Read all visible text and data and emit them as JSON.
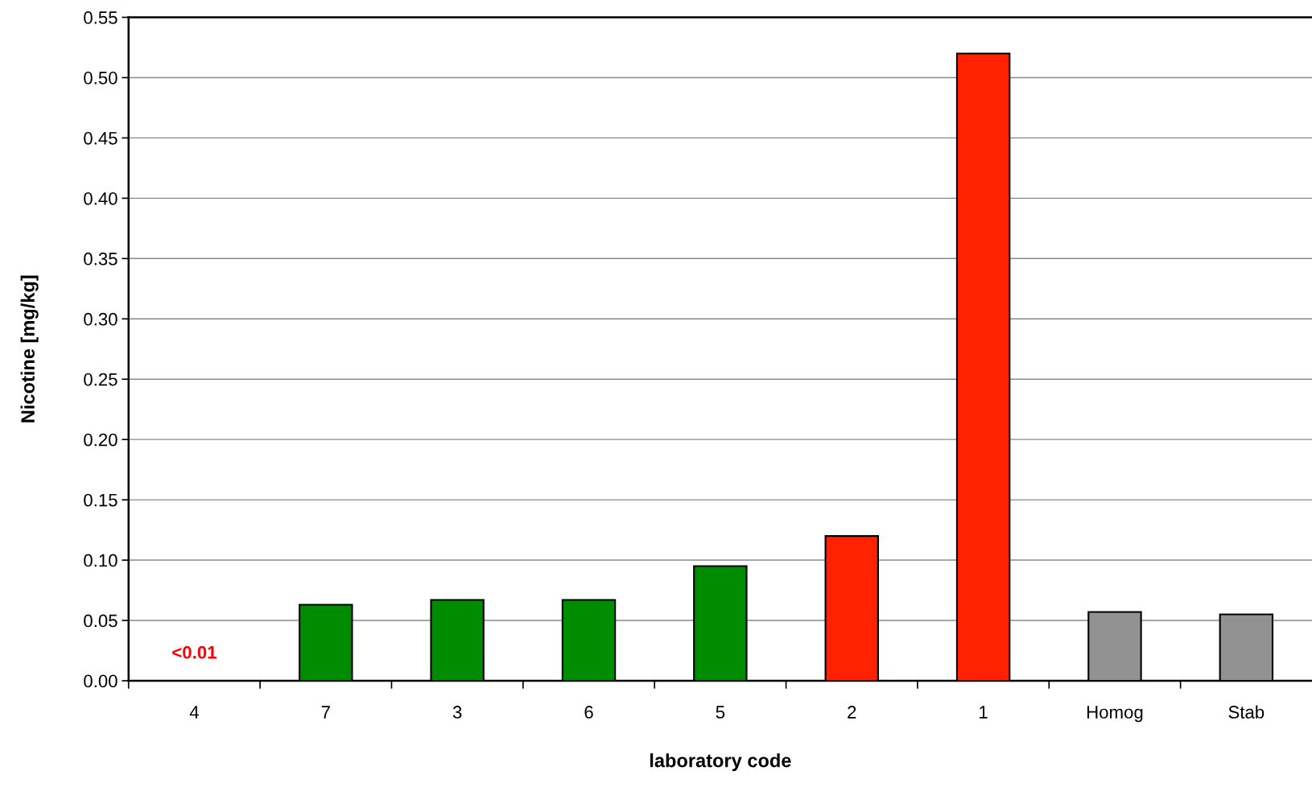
{
  "chart_data": {
    "type": "bar",
    "xlabel": "laboratory code",
    "ylabel": "Nicotine [mg/kg]",
    "categories": [
      "4",
      "7",
      "3",
      "6",
      "5",
      "2",
      "1",
      "Homog",
      "Stab"
    ],
    "values": [
      null,
      0.063,
      0.067,
      0.067,
      0.095,
      0.12,
      0.52,
      0.057,
      0.055
    ],
    "colors": [
      "#008c00",
      "#008c00",
      "#008c00",
      "#008c00",
      "#008c00",
      "#ff2200",
      "#ff2200",
      "#929292",
      "#929292"
    ],
    "ylim": [
      0,
      0.55
    ],
    "yticks": [
      {
        "value": 0,
        "label": "0.00"
      },
      {
        "value": 0.05,
        "label": "0.05"
      },
      {
        "value": 0.1,
        "label": "0.10"
      },
      {
        "value": 0.15,
        "label": "0.15"
      },
      {
        "value": 0.2,
        "label": "0.20"
      },
      {
        "value": 0.25,
        "label": "0.25"
      },
      {
        "value": 0.3,
        "label": "0.30"
      },
      {
        "value": 0.35,
        "label": "0.35"
      },
      {
        "value": 0.4,
        "label": "0.40"
      },
      {
        "value": 0.45,
        "label": "0.45"
      },
      {
        "value": 0.5,
        "label": "0.50"
      },
      {
        "value": 0.55,
        "label": "0.55"
      }
    ],
    "grid": "y",
    "annotations": [
      "<0.01"
    ]
  }
}
